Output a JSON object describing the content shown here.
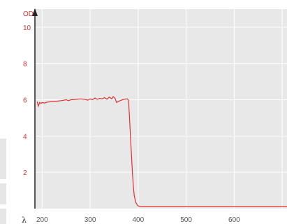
{
  "chart_data": {
    "type": "line",
    "ylabel": "OD",
    "xlabel": "λ",
    "xlim": [
      185,
      710
    ],
    "ylim": [
      0,
      11
    ],
    "x_ticks": [
      200,
      300,
      400,
      500,
      600
    ],
    "y_ticks": [
      2,
      4,
      6,
      8,
      10
    ],
    "x_tick_labels": [
      "200",
      "300",
      "400",
      "500",
      "600"
    ],
    "y_tick_labels": [
      "2",
      "4",
      "6",
      "8",
      "10"
    ],
    "grid": true,
    "colors": {
      "plot_bg": "#e8e8e8",
      "grid": "#ffffff",
      "line": "#e03030",
      "axis": "#222222",
      "y_text": "#e03030"
    },
    "series": [
      {
        "x": [
          190,
          192,
          195,
          198,
          200,
          205,
          210,
          220,
          230,
          240,
          250,
          255,
          260,
          270,
          280,
          290,
          295,
          300,
          305,
          310,
          315,
          320,
          325,
          330,
          335,
          340,
          345,
          348,
          352,
          355,
          360,
          365,
          370,
          375,
          378,
          380,
          382,
          384,
          386,
          388,
          390,
          392,
          395,
          398,
          400,
          405,
          410,
          420,
          450,
          500,
          550,
          600,
          650,
          700,
          710
        ],
        "y": [
          5.9,
          5.65,
          5.85,
          5.8,
          5.85,
          5.82,
          5.87,
          5.9,
          5.92,
          5.95,
          6.0,
          5.95,
          6.0,
          6.02,
          6.05,
          6.02,
          5.98,
          6.05,
          6.0,
          6.1,
          6.02,
          6.08,
          6.05,
          6.12,
          6.03,
          6.15,
          6.05,
          6.18,
          6.08,
          5.85,
          5.92,
          5.98,
          6.02,
          6.05,
          6.05,
          5.95,
          5.0,
          4.0,
          3.0,
          2.0,
          1.2,
          0.7,
          0.35,
          0.2,
          0.15,
          0.1,
          0.1,
          0.1,
          0.1,
          0.1,
          0.1,
          0.1,
          0.1,
          0.1,
          0.1
        ]
      }
    ]
  }
}
